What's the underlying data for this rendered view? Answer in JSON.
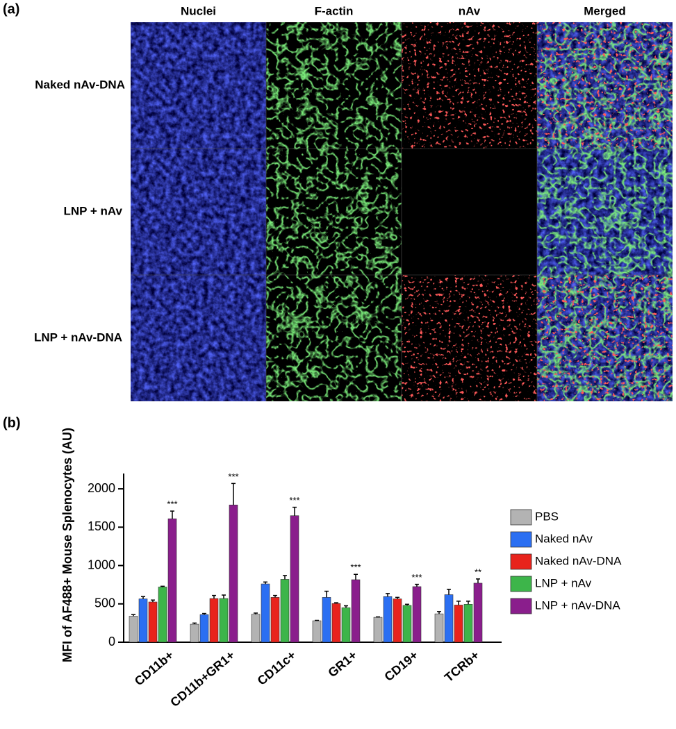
{
  "panel_a": {
    "label": "(a)",
    "columns": [
      "Nuclei",
      "F-actin",
      "nAv",
      "Merged"
    ],
    "rows": [
      "Naked nAv-DNA",
      "LNP + nAv",
      "LNP + nAv-DNA"
    ]
  },
  "panel_b": {
    "label": "(b)"
  },
  "chart_data": {
    "type": "bar",
    "y_label": "MFI of AF488+ Mouse Splenocytes (AU)",
    "categories": [
      "CD11b+",
      "CD11b+GR1+",
      "CD11c+",
      "GR1+",
      "CD19+",
      "TCRb+"
    ],
    "series": [
      {
        "name": "PBS",
        "color": "#b3b3b3",
        "values": [
          340,
          235,
          365,
          280,
          325,
          370
        ],
        "errors": [
          20,
          15,
          15,
          5,
          5,
          30
        ]
      },
      {
        "name": "Naked nAv",
        "color": "#2b6ff2",
        "values": [
          565,
          360,
          760,
          585,
          595,
          620
        ],
        "errors": [
          30,
          15,
          25,
          80,
          40,
          70
        ]
      },
      {
        "name": "Naked nAv-DNA",
        "color": "#e8231c",
        "values": [
          525,
          570,
          585,
          505,
          565,
          485
        ],
        "errors": [
          25,
          40,
          25,
          10,
          20,
          50
        ]
      },
      {
        "name": "LNP + nAv",
        "color": "#3db54a",
        "values": [
          720,
          570,
          820,
          450,
          480,
          495
        ],
        "errors": [
          10,
          45,
          50,
          25,
          15,
          40
        ]
      },
      {
        "name": "LNP + nAv-DNA",
        "color": "#8a1e8c",
        "values": [
          1610,
          1790,
          1650,
          815,
          725,
          770
        ],
        "errors": [
          100,
          280,
          110,
          70,
          30,
          55
        ]
      }
    ],
    "significance": [
      "***",
      "***",
      "***",
      "***",
      "***",
      "**"
    ],
    "ylim": [
      0,
      2200
    ],
    "yticks": [
      0,
      500,
      1000,
      1500,
      2000
    ],
    "legend": "right"
  }
}
